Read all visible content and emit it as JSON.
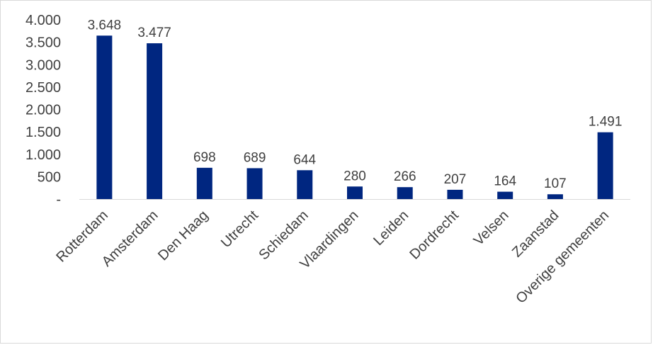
{
  "chart_data": {
    "type": "bar",
    "categories": [
      "Rotterdam",
      "Amsterdam",
      "Den Haag",
      "Utrecht",
      "Schiedam",
      "Vlaardingen",
      "Leiden",
      "Dordrecht",
      "Velsen",
      "Zaanstad",
      "Overige gemeenten"
    ],
    "values": [
      3648,
      3477,
      698,
      689,
      644,
      280,
      266,
      207,
      164,
      107,
      1491
    ],
    "data_labels": [
      "3.648",
      "3.477",
      "698",
      "689",
      "644",
      "280",
      "266",
      "207",
      "164",
      "107",
      "1.491"
    ],
    "ylim": [
      0,
      4000
    ],
    "yticks": [
      0,
      500,
      1000,
      1500,
      2000,
      2500,
      3000,
      3500,
      4000
    ],
    "ytick_labels": [
      "-",
      "500",
      "1.000",
      "1.500",
      "2.000",
      "2.500",
      "3.000",
      "3.500",
      "4.000"
    ],
    "bar_color": "#002680",
    "axis_color": "#d9d9d9",
    "grid": false,
    "legend": "none"
  }
}
